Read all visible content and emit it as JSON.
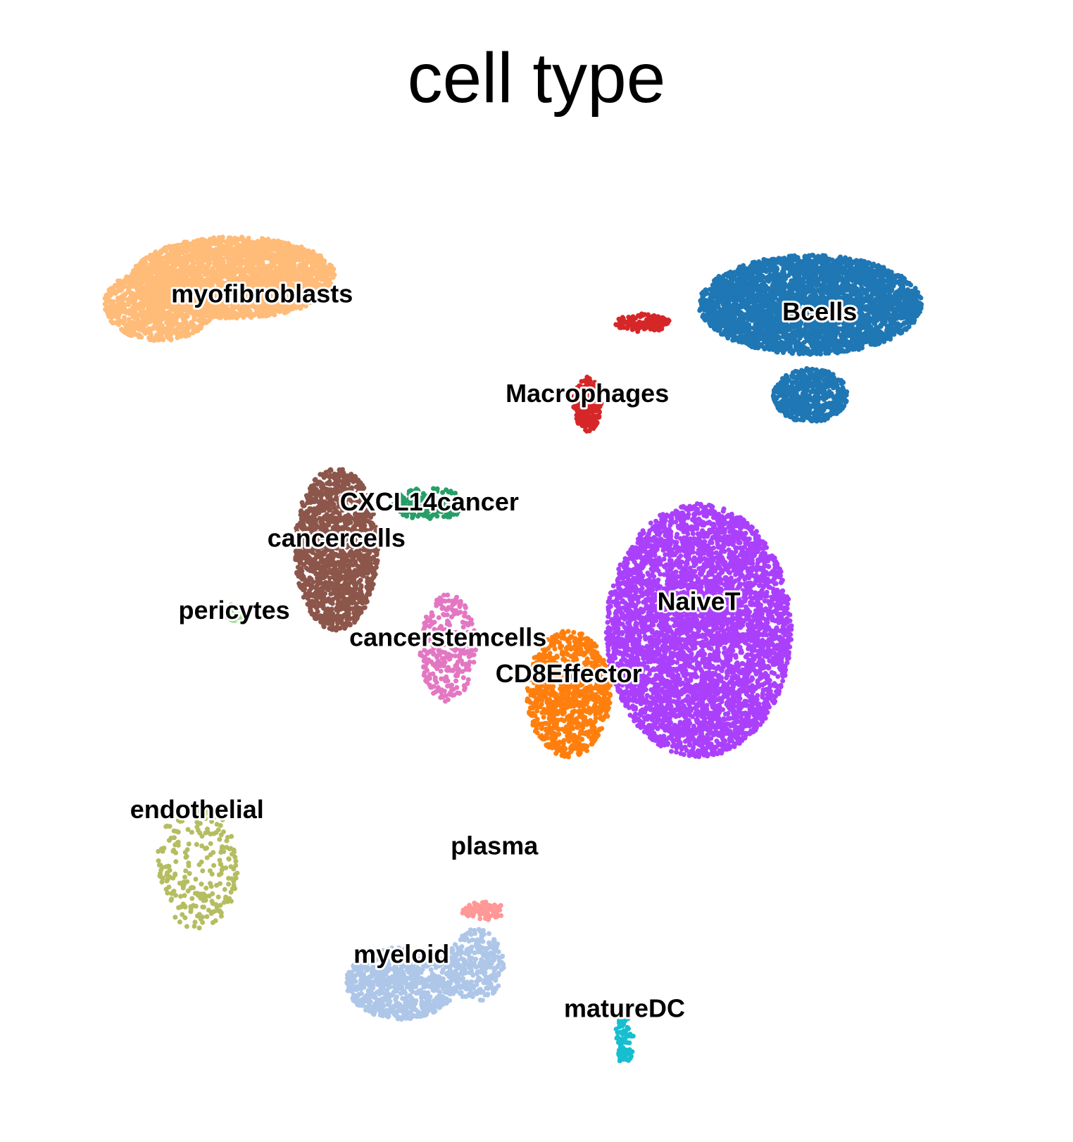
{
  "chart_data": {
    "type": "scatter",
    "title": "cell type",
    "xlabel": "",
    "ylabel": "",
    "grid": false,
    "legend": "on data",
    "axes_visible": false,
    "xlim": [
      0,
      100
    ],
    "ylim": [
      0,
      100
    ],
    "series": [
      {
        "name": "myofibroblasts",
        "color": "#ffbb78",
        "blobs": [
          [
            18,
            88,
            11,
            4.5,
            2500
          ],
          [
            10,
            85,
            6,
            4,
            900
          ]
        ]
      },
      {
        "name": "Bcells",
        "color": "#1f77b4",
        "blobs": [
          [
            80,
            85,
            12,
            5.5,
            3500
          ],
          [
            80,
            75,
            4,
            3,
            600
          ]
        ]
      },
      {
        "name": "Macrophages",
        "color": "#d62728",
        "blobs": [
          [
            56,
            74,
            1.5,
            3,
            250
          ],
          [
            62,
            83,
            3,
            1,
            120
          ]
        ]
      },
      {
        "name": "CXCL14cancer",
        "color": "#279e68",
        "blobs": [
          [
            39,
            63,
            4,
            1.8,
            200
          ]
        ]
      },
      {
        "name": "cancercells",
        "color": "#8c564b",
        "blobs": [
          [
            29,
            58,
            4.5,
            9,
            1400
          ]
        ]
      },
      {
        "name": "pericytes",
        "color": "#98df8a",
        "blobs": [
          [
            18,
            51,
            1,
            1,
            30
          ]
        ]
      },
      {
        "name": "cancerstemcells",
        "color": "#e377c2",
        "blobs": [
          [
            41,
            47,
            3,
            6,
            300
          ]
        ]
      },
      {
        "name": "NaiveT",
        "color": "#aa40fc",
        "blobs": [
          [
            68,
            49,
            10,
            14,
            4500
          ]
        ]
      },
      {
        "name": "CD8Effector",
        "color": "#ff7f0e",
        "blobs": [
          [
            54,
            42,
            4.5,
            7,
            900
          ]
        ]
      },
      {
        "name": "endothelial",
        "color": "#b5bd61",
        "blobs": [
          [
            14,
            23,
            4.5,
            7,
            250
          ]
        ]
      },
      {
        "name": "plasma",
        "color": "#ff9896",
        "blobs": [
          [
            45,
            18,
            2.5,
            1,
            80
          ]
        ]
      },
      {
        "name": "myeloid",
        "color": "#aec7e8",
        "blobs": [
          [
            36,
            10,
            6,
            4,
            800
          ],
          [
            44,
            12,
            3,
            4,
            300
          ]
        ]
      },
      {
        "name": "matureDC",
        "color": "#17becf",
        "blobs": [
          [
            60,
            4,
            1,
            3,
            80
          ]
        ]
      }
    ],
    "labels": [
      {
        "text": "myofibroblasts",
        "x": 21,
        "y": 86
      },
      {
        "text": "Bcells",
        "x": 81,
        "y": 84
      },
      {
        "text": "Macrophages",
        "x": 56,
        "y": 75
      },
      {
        "text": "CXCL14cancer",
        "x": 39,
        "y": 63
      },
      {
        "text": "cancercells",
        "x": 29,
        "y": 59
      },
      {
        "text": "pericytes",
        "x": 18,
        "y": 51
      },
      {
        "text": "NaiveT",
        "x": 68,
        "y": 52
      },
      {
        "text": "cancerstemcells",
        "x": 41,
        "y": 48
      },
      {
        "text": "CD8Effector",
        "x": 54,
        "y": 44
      },
      {
        "text": "endothelial",
        "x": 14,
        "y": 29
      },
      {
        "text": "plasma",
        "x": 46,
        "y": 25
      },
      {
        "text": "myeloid",
        "x": 36,
        "y": 13
      },
      {
        "text": "matureDC",
        "x": 60,
        "y": 7
      }
    ]
  }
}
